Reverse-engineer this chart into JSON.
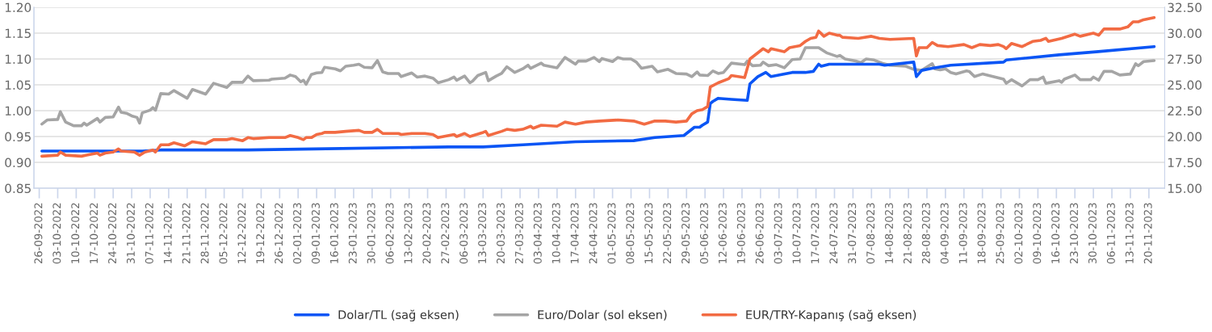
{
  "chart_data": {
    "type": "line",
    "xlim": [
      "2022-09-24",
      "2023-11-26"
    ],
    "xticks": [
      {
        "value": "2022-09-26",
        "label": "26-09-2022"
      },
      {
        "value": "2022-10-03",
        "label": "03-10-2022"
      },
      {
        "value": "2022-10-10",
        "label": "10-10-2022"
      },
      {
        "value": "2022-10-17",
        "label": "17-10-2022"
      },
      {
        "value": "2022-10-24",
        "label": "24-10-2022"
      },
      {
        "value": "2022-10-31",
        "label": "31-10-2022"
      },
      {
        "value": "2022-11-07",
        "label": "07-11-2022"
      },
      {
        "value": "2022-11-14",
        "label": "14-11-2022"
      },
      {
        "value": "2022-11-21",
        "label": "21-11-2022"
      },
      {
        "value": "2022-11-28",
        "label": "28-11-2022"
      },
      {
        "value": "2022-12-05",
        "label": "05-12-2022"
      },
      {
        "value": "2022-12-12",
        "label": "12-12-2022"
      },
      {
        "value": "2022-12-19",
        "label": "19-12-2022"
      },
      {
        "value": "2022-12-26",
        "label": "26-12-2022"
      },
      {
        "value": "2023-01-02",
        "label": "02-01-2023"
      },
      {
        "value": "2023-01-09",
        "label": "09-01-2023"
      },
      {
        "value": "2023-01-16",
        "label": "16-01-2023"
      },
      {
        "value": "2023-01-23",
        "label": "23-01-2023"
      },
      {
        "value": "2023-01-30",
        "label": "30-01-2023"
      },
      {
        "value": "2023-02-06",
        "label": "06-02-2023"
      },
      {
        "value": "2023-02-13",
        "label": "13-02-2023"
      },
      {
        "value": "2023-02-20",
        "label": "20-02-2023"
      },
      {
        "value": "2023-02-27",
        "label": "27-02-2023"
      },
      {
        "value": "2023-03-06",
        "label": "06-03-2023"
      },
      {
        "value": "2023-03-13",
        "label": "13-03-2023"
      },
      {
        "value": "2023-03-20",
        "label": "20-03-2023"
      },
      {
        "value": "2023-03-27",
        "label": "27-03-2023"
      },
      {
        "value": "2023-04-03",
        "label": "03-04-2023"
      },
      {
        "value": "2023-04-10",
        "label": "10-04-2023"
      },
      {
        "value": "2023-04-17",
        "label": "17-04-2023"
      },
      {
        "value": "2023-04-24",
        "label": "24-04-2023"
      },
      {
        "value": "2023-05-01",
        "label": "01-05-2023"
      },
      {
        "value": "2023-05-08",
        "label": "08-05-2023"
      },
      {
        "value": "2023-05-15",
        "label": "15-05-2023"
      },
      {
        "value": "2023-05-22",
        "label": "22-05-2023"
      },
      {
        "value": "2023-05-29",
        "label": "29-05-2023"
      },
      {
        "value": "2023-06-05",
        "label": "05-06-2023"
      },
      {
        "value": "2023-06-12",
        "label": "12-06-2023"
      },
      {
        "value": "2023-06-19",
        "label": "19-06-2023"
      },
      {
        "value": "2023-06-26",
        "label": "26-06-2023"
      },
      {
        "value": "2023-07-03",
        "label": "03-07-2023"
      },
      {
        "value": "2023-07-10",
        "label": "10-07-2023"
      },
      {
        "value": "2023-07-17",
        "label": "17-07-2023"
      },
      {
        "value": "2023-07-24",
        "label": "24-07-2023"
      },
      {
        "value": "2023-07-31",
        "label": "31-07-2023"
      },
      {
        "value": "2023-08-07",
        "label": "07-08-2023"
      },
      {
        "value": "2023-08-14",
        "label": "14-08-2023"
      },
      {
        "value": "2023-08-21",
        "label": "21-08-2023"
      },
      {
        "value": "2023-08-28",
        "label": "28-08-2023"
      },
      {
        "value": "2023-09-04",
        "label": "04-09-2023"
      },
      {
        "value": "2023-09-11",
        "label": "11-09-2023"
      },
      {
        "value": "2023-09-18",
        "label": "18-09-2023"
      },
      {
        "value": "2023-09-25",
        "label": "25-09-2023"
      },
      {
        "value": "2023-10-02",
        "label": "02-10-2023"
      },
      {
        "value": "2023-10-09",
        "label": "09-10-2023"
      },
      {
        "value": "2023-10-16",
        "label": "16-10-2023"
      },
      {
        "value": "2023-10-23",
        "label": "23-10-2023"
      },
      {
        "value": "2023-10-30",
        "label": "30-10-2023"
      },
      {
        "value": "2023-11-06",
        "label": "06-11-2023"
      },
      {
        "value": "2023-11-13",
        "label": "13-11-2023"
      },
      {
        "value": "2023-11-20",
        "label": "20-11-2023"
      }
    ],
    "ylim": [
      0.85,
      1.2
    ],
    "yticks": [
      {
        "value": 0.85,
        "label": "0.85"
      },
      {
        "value": 0.9,
        "label": "0.90"
      },
      {
        "value": 0.95,
        "label": "0.95"
      },
      {
        "value": 1.0,
        "label": "1.00"
      },
      {
        "value": 1.05,
        "label": "1.05"
      },
      {
        "value": 1.1,
        "label": "1.10"
      },
      {
        "value": 1.15,
        "label": "1.15"
      },
      {
        "value": 1.2,
        "label": "1.20"
      }
    ],
    "y2lim": [
      15,
      32.5
    ],
    "y2ticks": [
      {
        "value": 15,
        "label": "15.00"
      },
      {
        "value": 17.5,
        "label": "17.50"
      },
      {
        "value": 20,
        "label": "20.00"
      },
      {
        "value": 22.5,
        "label": "22.50"
      },
      {
        "value": 25,
        "label": "25.00"
      },
      {
        "value": 27.5,
        "label": "27.50"
      },
      {
        "value": 30,
        "label": "30.00"
      },
      {
        "value": 32.5,
        "label": "32.50"
      }
    ],
    "grid": "y",
    "legend": "bottom",
    "series": [
      {
        "name": "Dolar/TL (sağ eksen)",
        "color": "#0a55f5",
        "axis": "y2",
        "x": [
          "2022-09-27",
          "2022-10-18",
          "2022-11-04",
          "2022-11-11",
          "2022-12-14",
          "2023-01-08",
          "2023-02-28",
          "2023-03-13",
          "2023-03-28",
          "2023-04-17",
          "2023-05-09",
          "2023-05-17",
          "2023-05-28",
          "2023-06-01",
          "2023-06-03",
          "2023-06-04",
          "2023-06-06",
          "2023-06-07",
          "2023-06-08",
          "2023-06-10",
          "2023-06-15",
          "2023-06-21",
          "2023-06-22",
          "2023-06-25",
          "2023-06-28",
          "2023-06-30",
          "2023-07-04",
          "2023-07-08",
          "2023-07-13",
          "2023-07-16",
          "2023-07-18",
          "2023-07-19",
          "2023-07-22",
          "2023-08-10",
          "2023-08-12",
          "2023-08-23",
          "2023-08-24",
          "2023-08-26",
          "2023-08-30",
          "2023-09-06",
          "2023-09-26",
          "2023-09-27",
          "2023-10-17",
          "2023-10-31",
          "2023-11-22"
        ],
        "values": [
          18.6,
          18.6,
          18.6,
          18.7,
          18.7,
          18.8,
          19.0,
          19.0,
          19.2,
          19.5,
          19.6,
          19.9,
          20.1,
          20.9,
          20.9,
          21.1,
          21.4,
          23.2,
          23.4,
          23.7,
          23.6,
          23.5,
          25.1,
          25.8,
          26.2,
          25.8,
          26.0,
          26.2,
          26.2,
          26.3,
          27.0,
          26.8,
          27.0,
          27.0,
          26.9,
          27.2,
          25.8,
          26.4,
          26.6,
          26.9,
          27.2,
          27.4,
          27.9,
          28.2,
          28.7
        ]
      },
      {
        "name": "Euro/Dolar (sol eksen)",
        "color": "#a5a5a5",
        "x": [
          "2022-09-27",
          "2022-09-29",
          "2022-10-03",
          "2022-10-04",
          "2022-10-06",
          "2022-10-09",
          "2022-10-12",
          "2022-10-13",
          "2022-10-14",
          "2022-10-18",
          "2022-10-19",
          "2022-10-21",
          "2022-10-24",
          "2022-10-26",
          "2022-10-27",
          "2022-10-29",
          "2022-10-31",
          "2022-11-02",
          "2022-11-03",
          "2022-11-04",
          "2022-11-07",
          "2022-11-08",
          "2022-11-09",
          "2022-11-11",
          "2022-11-14",
          "2022-11-16",
          "2022-11-21",
          "2022-11-23",
          "2022-11-28",
          "2022-12-01",
          "2022-12-06",
          "2022-12-08",
          "2022-12-12",
          "2022-12-14",
          "2022-12-16",
          "2022-12-22",
          "2022-12-23",
          "2022-12-28",
          "2022-12-30",
          "2023-01-01",
          "2023-01-03",
          "2023-01-04",
          "2023-01-05",
          "2023-01-07",
          "2023-01-09",
          "2023-01-11",
          "2023-01-12",
          "2023-01-16",
          "2023-01-18",
          "2023-01-20",
          "2023-01-23",
          "2023-01-25",
          "2023-01-27",
          "2023-01-30",
          "2023-02-01",
          "2023-02-03",
          "2023-02-05",
          "2023-02-09",
          "2023-02-10",
          "2023-02-14",
          "2023-02-16",
          "2023-02-19",
          "2023-02-22",
          "2023-02-24",
          "2023-02-28",
          "2023-03-02",
          "2023-03-03",
          "2023-03-06",
          "2023-03-08",
          "2023-03-09",
          "2023-03-11",
          "2023-03-14",
          "2023-03-15",
          "2023-03-18",
          "2023-03-20",
          "2023-03-22",
          "2023-03-25",
          "2023-03-28",
          "2023-03-30",
          "2023-03-31",
          "2023-04-04",
          "2023-04-05",
          "2023-04-10",
          "2023-04-13",
          "2023-04-17",
          "2023-04-18",
          "2023-04-21",
          "2023-04-24",
          "2023-04-26",
          "2023-04-27",
          "2023-05-01",
          "2023-05-03",
          "2023-05-05",
          "2023-05-08",
          "2023-05-10",
          "2023-05-12",
          "2023-05-16",
          "2023-05-18",
          "2023-05-22",
          "2023-05-25",
          "2023-05-29",
          "2023-05-31",
          "2023-06-02",
          "2023-06-03",
          "2023-06-06",
          "2023-06-08",
          "2023-06-10",
          "2023-06-12",
          "2023-06-15",
          "2023-06-20",
          "2023-06-21",
          "2023-06-23",
          "2023-06-26",
          "2023-06-27",
          "2023-06-29",
          "2023-07-02",
          "2023-07-05",
          "2023-07-08",
          "2023-07-11",
          "2023-07-13",
          "2023-07-18",
          "2023-07-21",
          "2023-07-25",
          "2023-07-26",
          "2023-07-28",
          "2023-08-01",
          "2023-08-03",
          "2023-08-05",
          "2023-08-08",
          "2023-08-11",
          "2023-08-14",
          "2023-08-20",
          "2023-08-23",
          "2023-08-26",
          "2023-08-30",
          "2023-08-31",
          "2023-09-02",
          "2023-09-04",
          "2023-09-06",
          "2023-09-08",
          "2023-09-12",
          "2023-09-13",
          "2023-09-15",
          "2023-09-18",
          "2023-09-26",
          "2023-09-27",
          "2023-09-29",
          "2023-10-03",
          "2023-10-06",
          "2023-10-09",
          "2023-10-11",
          "2023-10-12",
          "2023-10-17",
          "2023-10-18",
          "2023-10-19",
          "2023-10-23",
          "2023-10-25",
          "2023-10-29",
          "2023-10-30",
          "2023-11-01",
          "2023-11-03",
          "2023-11-06",
          "2023-11-09",
          "2023-11-13",
          "2023-11-15",
          "2023-11-16",
          "2023-11-18",
          "2023-11-22"
        ],
        "values": [
          0.974,
          0.982,
          0.983,
          0.998,
          0.978,
          0.971,
          0.971,
          0.976,
          0.972,
          0.985,
          0.978,
          0.987,
          0.988,
          1.007,
          0.997,
          0.995,
          0.99,
          0.987,
          0.976,
          0.996,
          1.001,
          1.006,
          1.001,
          1.033,
          1.032,
          1.039,
          1.024,
          1.041,
          1.032,
          1.053,
          1.045,
          1.055,
          1.055,
          1.067,
          1.058,
          1.059,
          1.061,
          1.063,
          1.069,
          1.066,
          1.056,
          1.059,
          1.051,
          1.07,
          1.073,
          1.074,
          1.084,
          1.081,
          1.077,
          1.086,
          1.088,
          1.09,
          1.084,
          1.083,
          1.097,
          1.075,
          1.072,
          1.072,
          1.066,
          1.073,
          1.065,
          1.067,
          1.063,
          1.054,
          1.06,
          1.065,
          1.059,
          1.067,
          1.054,
          1.057,
          1.068,
          1.074,
          1.058,
          1.067,
          1.072,
          1.085,
          1.074,
          1.081,
          1.088,
          1.082,
          1.092,
          1.088,
          1.083,
          1.103,
          1.09,
          1.096,
          1.096,
          1.103,
          1.095,
          1.101,
          1.095,
          1.103,
          1.1,
          1.1,
          1.094,
          1.082,
          1.086,
          1.075,
          1.08,
          1.072,
          1.071,
          1.066,
          1.075,
          1.069,
          1.068,
          1.077,
          1.072,
          1.074,
          1.092,
          1.089,
          1.096,
          1.087,
          1.088,
          1.094,
          1.087,
          1.089,
          1.083,
          1.099,
          1.1,
          1.122,
          1.122,
          1.112,
          1.105,
          1.107,
          1.1,
          1.096,
          1.093,
          1.1,
          1.098,
          1.092,
          1.088,
          1.086,
          1.08,
          1.078,
          1.091,
          1.081,
          1.079,
          1.081,
          1.074,
          1.071,
          1.077,
          1.076,
          1.066,
          1.071,
          1.061,
          1.053,
          1.06,
          1.048,
          1.06,
          1.06,
          1.065,
          1.053,
          1.058,
          1.055,
          1.061,
          1.069,
          1.06,
          1.06,
          1.065,
          1.059,
          1.076,
          1.076,
          1.069,
          1.071,
          1.091,
          1.087,
          1.095,
          1.097
        ]
      },
      {
        "name": "EUR/TRY-Kapanış (sağ eksen)",
        "color": "#f26b43",
        "axis": "y2",
        "x": [
          "2022-09-27",
          "2022-10-03",
          "2022-10-04",
          "2022-10-06",
          "2022-10-12",
          "2022-10-14",
          "2022-10-18",
          "2022-10-19",
          "2022-10-21",
          "2022-10-24",
          "2022-10-26",
          "2022-10-27",
          "2022-11-01",
          "2022-11-03",
          "2022-11-05",
          "2022-11-08",
          "2022-11-09",
          "2022-11-11",
          "2022-11-14",
          "2022-11-16",
          "2022-11-20",
          "2022-11-23",
          "2022-11-28",
          "2022-12-01",
          "2022-12-06",
          "2022-12-08",
          "2022-12-12",
          "2022-12-14",
          "2022-12-16",
          "2022-12-22",
          "2022-12-28",
          "2022-12-30",
          "2023-01-02",
          "2023-01-04",
          "2023-01-05",
          "2023-01-07",
          "2023-01-09",
          "2023-01-11",
          "2023-01-12",
          "2023-01-16",
          "2023-01-20",
          "2023-01-25",
          "2023-01-27",
          "2023-01-30",
          "2023-02-01",
          "2023-02-03",
          "2023-02-09",
          "2023-02-10",
          "2023-02-14",
          "2023-02-19",
          "2023-02-22",
          "2023-02-24",
          "2023-02-28",
          "2023-03-02",
          "2023-03-03",
          "2023-03-06",
          "2023-03-08",
          "2023-03-13",
          "2023-03-14",
          "2023-03-15",
          "2023-03-20",
          "2023-03-22",
          "2023-03-25",
          "2023-03-28",
          "2023-03-31",
          "2023-04-01",
          "2023-04-04",
          "2023-04-10",
          "2023-04-13",
          "2023-04-17",
          "2023-04-21",
          "2023-04-26",
          "2023-05-03",
          "2023-05-09",
          "2023-05-13",
          "2023-05-17",
          "2023-05-21",
          "2023-05-25",
          "2023-05-29",
          "2023-05-31",
          "2023-06-02",
          "2023-06-04",
          "2023-06-06",
          "2023-06-07",
          "2023-06-10",
          "2023-06-14",
          "2023-06-15",
          "2023-06-20",
          "2023-06-22",
          "2023-06-27",
          "2023-06-29",
          "2023-06-30",
          "2023-07-05",
          "2023-07-07",
          "2023-07-11",
          "2023-07-13",
          "2023-07-15",
          "2023-07-17",
          "2023-07-18",
          "2023-07-20",
          "2023-07-22",
          "2023-07-25",
          "2023-07-26",
          "2023-07-27",
          "2023-08-02",
          "2023-08-07",
          "2023-08-10",
          "2023-08-14",
          "2023-08-23",
          "2023-08-24",
          "2023-08-25",
          "2023-08-28",
          "2023-08-30",
          "2023-09-01",
          "2023-09-05",
          "2023-09-11",
          "2023-09-14",
          "2023-09-17",
          "2023-09-21",
          "2023-09-24",
          "2023-09-26",
          "2023-09-27",
          "2023-09-29",
          "2023-10-03",
          "2023-10-07",
          "2023-10-10",
          "2023-10-12",
          "2023-10-13",
          "2023-10-18",
          "2023-10-23",
          "2023-10-25",
          "2023-10-30",
          "2023-11-01",
          "2023-11-03",
          "2023-11-09",
          "2023-11-12",
          "2023-11-14",
          "2023-11-16",
          "2023-11-18",
          "2023-11-22"
        ],
        "values": [
          18.1,
          18.2,
          18.5,
          18.2,
          18.1,
          18.2,
          18.4,
          18.2,
          18.4,
          18.5,
          18.8,
          18.6,
          18.5,
          18.2,
          18.5,
          18.7,
          18.5,
          19.2,
          19.2,
          19.4,
          19.1,
          19.5,
          19.3,
          19.7,
          19.7,
          19.8,
          19.6,
          19.9,
          19.8,
          19.9,
          19.9,
          20.1,
          19.9,
          19.7,
          19.9,
          19.9,
          20.2,
          20.3,
          20.4,
          20.4,
          20.5,
          20.6,
          20.4,
          20.4,
          20.7,
          20.3,
          20.3,
          20.2,
          20.3,
          20.3,
          20.2,
          19.9,
          20.1,
          20.2,
          20.0,
          20.3,
          20.0,
          20.4,
          20.5,
          20.1,
          20.5,
          20.7,
          20.6,
          20.7,
          21.0,
          20.8,
          21.1,
          21.0,
          21.4,
          21.2,
          21.4,
          21.5,
          21.6,
          21.5,
          21.2,
          21.5,
          21.5,
          21.4,
          21.5,
          22.2,
          22.5,
          22.6,
          22.9,
          24.8,
          25.2,
          25.6,
          25.9,
          25.7,
          27.5,
          28.5,
          28.2,
          28.5,
          28.2,
          28.6,
          28.8,
          29.2,
          29.5,
          29.6,
          30.2,
          29.7,
          30.0,
          29.8,
          29.8,
          29.6,
          29.5,
          29.7,
          29.5,
          29.4,
          29.5,
          27.8,
          28.6,
          28.6,
          29.1,
          28.8,
          28.7,
          28.9,
          28.6,
          28.9,
          28.8,
          28.9,
          28.7,
          28.5,
          29.0,
          28.7,
          29.2,
          29.3,
          29.5,
          29.2,
          29.5,
          29.9,
          29.7,
          30.0,
          29.8,
          30.4,
          30.4,
          30.6,
          31.1,
          31.1,
          31.3,
          31.5
        ]
      }
    ]
  }
}
